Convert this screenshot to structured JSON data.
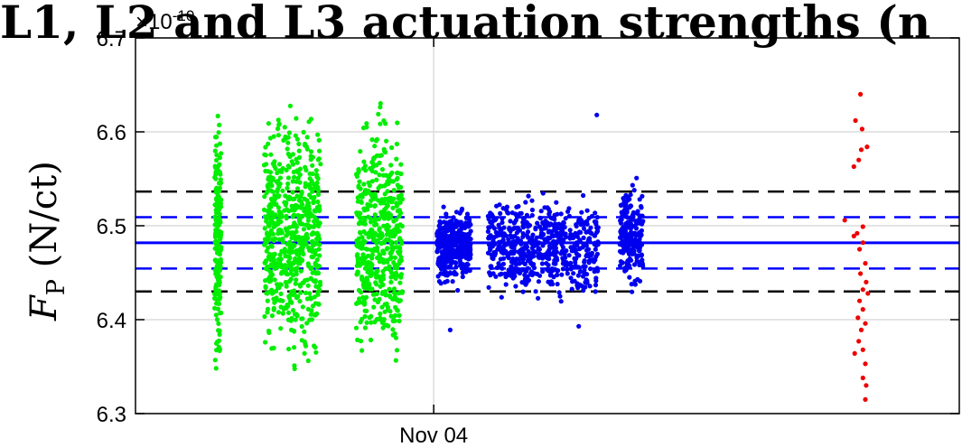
{
  "chart_data": {
    "type": "scatter",
    "title": "L1, L2 and L3 actuation strengths (n",
    "ylabel_main": "F",
    "ylabel_sub": "P",
    "ylabel_unit": " (N/ct)",
    "y_exponent": "×10",
    "y_exponent_power": "-10",
    "ylim": [
      6.3,
      6.7
    ],
    "y_ticks": [
      {
        "value": 6.3,
        "label": "6.3"
      },
      {
        "value": 6.4,
        "label": "6.4"
      },
      {
        "value": 6.5,
        "label": "6.5"
      },
      {
        "value": 6.6,
        "label": "6.6"
      },
      {
        "value": 6.7,
        "label": "6.7"
      }
    ],
    "xlim": [
      0,
      100
    ],
    "x_ticks": [
      {
        "value": 36.2,
        "label": "Nov 04"
      }
    ],
    "grid": true,
    "reference_lines": [
      {
        "value": 6.4818,
        "style": "solid",
        "color": "#0000ff"
      },
      {
        "value": 6.5091,
        "style": "dashed",
        "color": "#0000ff"
      },
      {
        "value": 6.4545,
        "style": "dashed",
        "color": "#0000ff"
      },
      {
        "value": 6.5364,
        "style": "dashed",
        "color": "#000000"
      },
      {
        "value": 6.43,
        "style": "dashed",
        "color": "#000000"
      }
    ],
    "series": [
      {
        "color": "#00ee00",
        "clusters": [
          {
            "x": [
              9.6,
              10.4
            ],
            "y": [
              6.315,
              6.65
            ],
            "n": 180
          },
          {
            "x": [
              15.6,
              22.5
            ],
            "y": [
              6.325,
              6.65
            ],
            "n": 650
          },
          {
            "x": [
              26.8,
              32.4
            ],
            "y": [
              6.32,
              6.652
            ],
            "n": 500
          }
        ]
      },
      {
        "color": "#0000ee",
        "clusters": [
          {
            "x": [
              36.6,
              40.7
            ],
            "y": [
              6.45,
              6.51
            ],
            "n": 420,
            "ysd": 0.022,
            "ymean": 6.481
          },
          {
            "x": [
              42.8,
              56.2
            ],
            "y": [
              6.41,
              6.545
            ],
            "n": 620
          },
          {
            "x": [
              58.8,
              61.6
            ],
            "y": [
              6.42,
              6.56
            ],
            "n": 200
          }
        ],
        "outliers": [
          {
            "x": 38.2,
            "y": 6.389
          },
          {
            "x": 56.0,
            "y": 6.618
          },
          {
            "x": 53.8,
            "y": 6.393
          }
        ]
      },
      {
        "color": "#ee0000",
        "points": [
          {
            "x": 88.0,
            "y": 6.64
          },
          {
            "x": 87.4,
            "y": 6.612
          },
          {
            "x": 88.2,
            "y": 6.603
          },
          {
            "x": 88.8,
            "y": 6.584
          },
          {
            "x": 88.1,
            "y": 6.581
          },
          {
            "x": 87.8,
            "y": 6.57
          },
          {
            "x": 87.2,
            "y": 6.563
          },
          {
            "x": 86.1,
            "y": 6.506
          },
          {
            "x": 88.3,
            "y": 6.499
          },
          {
            "x": 87.6,
            "y": 6.492
          },
          {
            "x": 87.2,
            "y": 6.489
          },
          {
            "x": 88.3,
            "y": 6.482
          },
          {
            "x": 87.9,
            "y": 6.475
          },
          {
            "x": 88.6,
            "y": 6.46
          },
          {
            "x": 88.0,
            "y": 6.449
          },
          {
            "x": 88.7,
            "y": 6.44
          },
          {
            "x": 88.3,
            "y": 6.432
          },
          {
            "x": 88.9,
            "y": 6.428
          },
          {
            "x": 87.9,
            "y": 6.42
          },
          {
            "x": 88.3,
            "y": 6.411
          },
          {
            "x": 87.7,
            "y": 6.402
          },
          {
            "x": 88.6,
            "y": 6.396
          },
          {
            "x": 88.1,
            "y": 6.389
          },
          {
            "x": 87.8,
            "y": 6.377
          },
          {
            "x": 88.3,
            "y": 6.368
          },
          {
            "x": 87.3,
            "y": 6.364
          },
          {
            "x": 88.6,
            "y": 6.353
          },
          {
            "x": 88.3,
            "y": 6.338
          },
          {
            "x": 88.7,
            "y": 6.33
          },
          {
            "x": 88.6,
            "y": 6.315
          }
        ]
      }
    ]
  }
}
